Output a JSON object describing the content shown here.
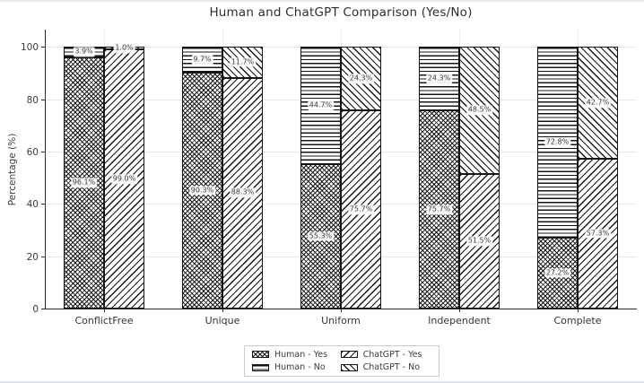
{
  "figure": {
    "background_color": "#ffffff",
    "text_color": "#2e2e2e",
    "grid_color": "#e7e7e7",
    "hatch_color": "#151515"
  },
  "chart_data": {
    "type": "bar",
    "stacked": true,
    "orientation": "vertical",
    "title": "Human and ChatGPT Comparison (Yes/No)",
    "xlabel": "",
    "ylabel": "Percentage (%)",
    "ylim": [
      0,
      107
    ],
    "yticks": [
      0,
      20,
      40,
      60,
      80,
      100
    ],
    "grid": true,
    "categories": [
      "ConflictFree",
      "Unique",
      "Uniform",
      "Independent",
      "Complete"
    ],
    "bar_groups": [
      "Human",
      "ChatGPT"
    ],
    "series": [
      {
        "name": "Human - Yes",
        "bar": "Human",
        "stack_order": 0,
        "hatch": "crosshatch",
        "values": [
          96.1,
          90.3,
          55.3,
          75.7,
          27.2
        ],
        "labels": [
          "96.1%",
          "90.3%",
          "55.3%",
          "75.7%",
          "27.2%"
        ]
      },
      {
        "name": "Human - No",
        "bar": "Human",
        "stack_order": 1,
        "hatch": "horizontal-lines",
        "values": [
          3.9,
          9.7,
          44.7,
          24.3,
          72.8
        ],
        "labels": [
          "3.9%",
          "9.7%",
          "44.7%",
          "24.3%",
          "72.8%"
        ]
      },
      {
        "name": "ChatGPT - Yes",
        "bar": "ChatGPT",
        "stack_order": 0,
        "hatch": "diagonal-forward",
        "values": [
          99.0,
          88.3,
          75.7,
          51.5,
          57.3
        ],
        "labels": [
          "99.0%",
          "88.3%",
          "75.7%",
          "51.5%",
          "57.3%"
        ]
      },
      {
        "name": "ChatGPT - No",
        "bar": "ChatGPT",
        "stack_order": 1,
        "hatch": "diagonal-backward",
        "values": [
          1.0,
          11.7,
          24.3,
          48.5,
          42.7
        ],
        "labels": [
          "1.0%",
          "11.7%",
          "24.3%",
          "48.5%",
          "42.7%"
        ]
      }
    ],
    "legend": {
      "position": "bottom-center",
      "entries": [
        {
          "label": "Human - Yes",
          "hatch": "crosshatch"
        },
        {
          "label": "ChatGPT - Yes",
          "hatch": "diagonal-forward"
        },
        {
          "label": "Human - No",
          "hatch": "horizontal-lines"
        },
        {
          "label": "ChatGPT - No",
          "hatch": "diagonal-backward"
        }
      ]
    }
  }
}
